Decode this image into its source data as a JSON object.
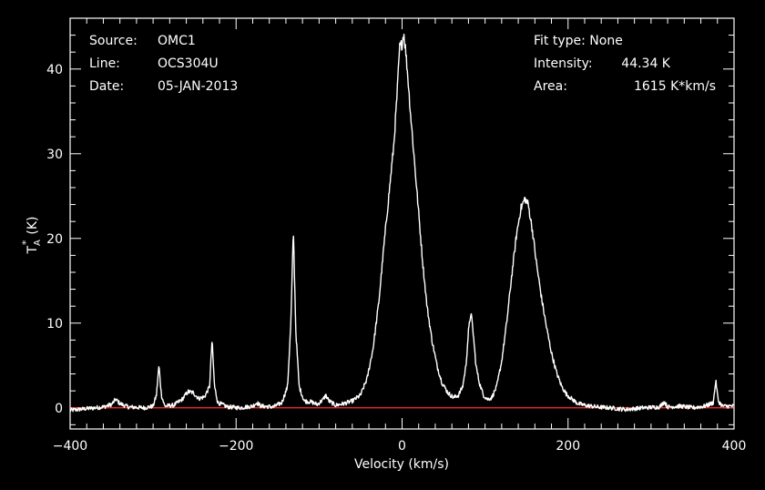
{
  "info": {
    "source_label": "Source:",
    "source_value": "OMC1",
    "line_label": "Line:",
    "line_value": "OCS304U",
    "date_label": "Date:",
    "date_value": "05-JAN-2013",
    "fit_type_text": "Fit type: None",
    "intensity_label": "Intensity:",
    "intensity_value": "44.34 K",
    "area_label": "Area:",
    "area_value": "1615 K*km/s"
  },
  "colors": {
    "background": "#000000",
    "foreground": "#ffffff",
    "spectrum": "#ffffff",
    "baseline": "#ff3030"
  },
  "chart_data": {
    "type": "line",
    "title": "",
    "xlabel": "Velocity (km/s)",
    "ylabel_main": "T",
    "ylabel_sup": "*",
    "ylabel_sub": "A",
    "ylabel_unit": "(K)",
    "xlim": [
      -400,
      400
    ],
    "ylim": [
      -2.5,
      46
    ],
    "x_ticks": [
      -400,
      -200,
      0,
      200,
      400
    ],
    "x_tick_labels": [
      "−400",
      "−200",
      "0",
      "200",
      "400"
    ],
    "y_ticks": [
      0,
      10,
      20,
      30,
      40
    ],
    "y_tick_labels": [
      "0",
      "10",
      "20",
      "30",
      "40"
    ],
    "grid": false,
    "baseline_y": 0,
    "series": [
      {
        "points": [
          [
            -400,
            -0.3
          ],
          [
            -380,
            -0.1
          ],
          [
            -360,
            0.1
          ],
          [
            -350,
            0.4
          ],
          [
            -345,
            1.0
          ],
          [
            -340,
            0.5
          ],
          [
            -330,
            0.1
          ],
          [
            -310,
            0.0
          ],
          [
            -300,
            0.2
          ],
          [
            -296,
            1.5
          ],
          [
            -293,
            5.0
          ],
          [
            -290,
            1.5
          ],
          [
            -286,
            0.2
          ],
          [
            -275,
            0.3
          ],
          [
            -265,
            1.0
          ],
          [
            -258,
            1.9
          ],
          [
            -252,
            1.8
          ],
          [
            -245,
            1.1
          ],
          [
            -238,
            1.3
          ],
          [
            -232,
            2.5
          ],
          [
            -229,
            8.0
          ],
          [
            -226,
            2.5
          ],
          [
            -222,
            0.6
          ],
          [
            -210,
            0.1
          ],
          [
            -195,
            0.0
          ],
          [
            -180,
            0.2
          ],
          [
            -175,
            0.6
          ],
          [
            -170,
            0.2
          ],
          [
            -155,
            0.1
          ],
          [
            -145,
            0.6
          ],
          [
            -138,
            2.5
          ],
          [
            -134,
            10.0
          ],
          [
            -131,
            21.0
          ],
          [
            -128,
            9.0
          ],
          [
            -124,
            2.5
          ],
          [
            -118,
            0.8
          ],
          [
            -110,
            0.7
          ],
          [
            -102,
            0.4
          ],
          [
            -95,
            1.0
          ],
          [
            -92,
            1.5
          ],
          [
            -88,
            0.8
          ],
          [
            -80,
            0.3
          ],
          [
            -70,
            0.5
          ],
          [
            -60,
            0.8
          ],
          [
            -50,
            1.5
          ],
          [
            -42,
            3.5
          ],
          [
            -35,
            7.0
          ],
          [
            -28,
            12.5
          ],
          [
            -22,
            19.0
          ],
          [
            -16,
            25.0
          ],
          [
            -10,
            31.0
          ],
          [
            -6,
            37.0
          ],
          [
            -3,
            42.5
          ],
          [
            0,
            43.0
          ],
          [
            2,
            44.3
          ],
          [
            4,
            42.5
          ],
          [
            7,
            39.0
          ],
          [
            10,
            35.0
          ],
          [
            15,
            29.0
          ],
          [
            20,
            23.0
          ],
          [
            25,
            17.0
          ],
          [
            30,
            12.0
          ],
          [
            36,
            8.0
          ],
          [
            42,
            5.0
          ],
          [
            48,
            3.0
          ],
          [
            55,
            1.8
          ],
          [
            62,
            1.2
          ],
          [
            68,
            1.5
          ],
          [
            73,
            2.5
          ],
          [
            77,
            5.0
          ],
          [
            80,
            9.0
          ],
          [
            83,
            11.3
          ],
          [
            86,
            8.5
          ],
          [
            89,
            5.0
          ],
          [
            93,
            3.0
          ],
          [
            98,
            1.5
          ],
          [
            103,
            1.0
          ],
          [
            108,
            1.2
          ],
          [
            114,
            2.5
          ],
          [
            120,
            5.5
          ],
          [
            126,
            10.0
          ],
          [
            132,
            15.5
          ],
          [
            138,
            20.5
          ],
          [
            143,
            23.5
          ],
          [
            148,
            24.7
          ],
          [
            152,
            24.0
          ],
          [
            157,
            21.0
          ],
          [
            162,
            17.0
          ],
          [
            168,
            13.0
          ],
          [
            174,
            9.5
          ],
          [
            180,
            6.5
          ],
          [
            186,
            4.2
          ],
          [
            192,
            2.6
          ],
          [
            198,
            1.6
          ],
          [
            205,
            1.0
          ],
          [
            212,
            0.5
          ],
          [
            220,
            0.3
          ],
          [
            235,
            0.1
          ],
          [
            250,
            0.0
          ],
          [
            270,
            -0.2
          ],
          [
            290,
            0.0
          ],
          [
            310,
            0.1
          ],
          [
            316,
            0.7
          ],
          [
            320,
            0.1
          ],
          [
            335,
            0.2
          ],
          [
            350,
            0.0
          ],
          [
            365,
            0.2
          ],
          [
            375,
            0.6
          ],
          [
            378,
            3.2
          ],
          [
            381,
            0.8
          ],
          [
            386,
            0.2
          ],
          [
            400,
            0.2
          ]
        ]
      }
    ]
  }
}
